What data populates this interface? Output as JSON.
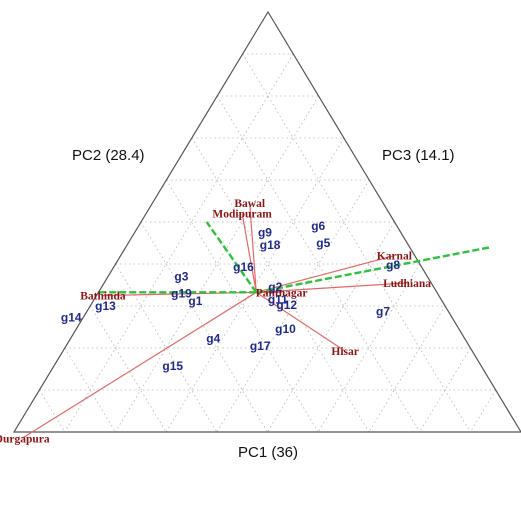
{
  "chart_data": {
    "type": "scatter",
    "axes": [
      {
        "key": "pc1",
        "label": "PC1 (36)"
      },
      {
        "key": "pc2",
        "label": "PC2 (28.4)"
      },
      {
        "key": "pc3",
        "label": "PC3 (14.1)"
      }
    ],
    "grid": true,
    "origin": {
      "pc1": 0.335,
      "pc2": 0.355,
      "pc3": 0.31
    },
    "genotypes": [
      {
        "name": "g1",
        "pc1": 0.375,
        "pc2": 0.455,
        "pc3": 0.17
      },
      {
        "name": "g2",
        "pc1": 0.31,
        "pc2": 0.33,
        "pc3": 0.36
      },
      {
        "name": "g3",
        "pc1": 0.26,
        "pc2": 0.54,
        "pc3": 0.2
      },
      {
        "name": "g4",
        "pc1": 0.555,
        "pc2": 0.33,
        "pc3": 0.115
      },
      {
        "name": "g5",
        "pc1": 0.1,
        "pc2": 0.34,
        "pc3": 0.56
      },
      {
        "name": "g6",
        "pc1": 0.02,
        "pc2": 0.39,
        "pc3": 0.59
      },
      {
        "name": "g7",
        "pc1": 0.425,
        "pc2": 0.06,
        "pc3": 0.515
      },
      {
        "name": "g8",
        "pc1": 0.205,
        "pc2": 0.15,
        "pc3": 0.645
      },
      {
        "name": "g9",
        "pc1": 0.05,
        "pc2": 0.48,
        "pc3": 0.47
      },
      {
        "name": "g10",
        "pc1": 0.51,
        "pc2": 0.21,
        "pc3": 0.28
      },
      {
        "name": "g11",
        "pc1": 0.37,
        "pc2": 0.295,
        "pc3": 0.335
      },
      {
        "name": "g12",
        "pc1": 0.395,
        "pc2": 0.265,
        "pc3": 0.34
      },
      {
        "name": "g13",
        "pc1": 0.4,
        "pc2": 0.62,
        "pc3": -0.02
      },
      {
        "name": "g14",
        "pc1": 0.455,
        "pc2": 0.66,
        "pc3": -0.115
      },
      {
        "name": "g15",
        "pc1": 0.685,
        "pc2": 0.345,
        "pc3": -0.03
      },
      {
        "name": "g16",
        "pc1": 0.215,
        "pc2": 0.44,
        "pc3": 0.345
      },
      {
        "name": "g17",
        "pc1": 0.59,
        "pc2": 0.22,
        "pc3": 0.19
      },
      {
        "name": "g18",
        "pc1": 0.11,
        "pc2": 0.44,
        "pc3": 0.45
      },
      {
        "name": "g19",
        "pc1": 0.34,
        "pc2": 0.5,
        "pc3": 0.16
      }
    ],
    "environments": [
      {
        "name": "Bawal",
        "pc1": -0.09,
        "pc2": 0.58,
        "pc3": 0.51
      },
      {
        "name": "Modipuram",
        "pc1": -0.04,
        "pc2": 0.57,
        "pc3": 0.47
      },
      {
        "name": "Karnal",
        "pc1": 0.16,
        "pc2": 0.17,
        "pc3": 0.67
      },
      {
        "name": "Ludhiana",
        "pc1": 0.29,
        "pc2": 0.08,
        "pc3": 0.63
      },
      {
        "name": "Pantnagar",
        "pc1": 0.335,
        "pc2": 0.305,
        "pc3": 0.36
      },
      {
        "name": "Bathinda",
        "pc1": 0.35,
        "pc2": 0.65,
        "pc3": 0.0
      },
      {
        "name": "Hisar",
        "pc1": 0.615,
        "pc2": 0.04,
        "pc3": 0.345
      },
      {
        "name": "Durgapura",
        "pc1": 1.03,
        "pc2": 0.47,
        "pc3": -0.5
      }
    ],
    "sector_divisions": [
      {
        "pc1": 0.335,
        "pc2": 0.665,
        "pc3": 0.0
      },
      {
        "pc1": 0.0,
        "pc2": 0.62,
        "pc3": 0.38
      },
      {
        "pc1": 0.12,
        "pc2": 0.0,
        "pc3": 0.88
      }
    ],
    "colors": {
      "triangle": "#555555",
      "grid": "#b5b5b5",
      "vector": "#e06a6a",
      "sector_line": "#2ec23a",
      "genotype": "#1f2a8a",
      "environment": "#8e1414"
    }
  }
}
